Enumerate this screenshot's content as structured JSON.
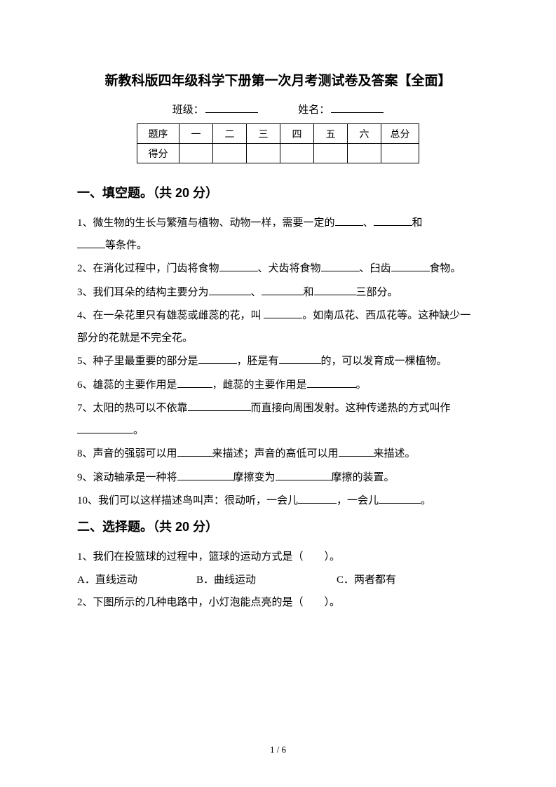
{
  "title": "新教科版四年级科学下册第一次月考测试卷及答案【全面】",
  "info": {
    "class_label": "班级：",
    "name_label": "姓名："
  },
  "scoreTable": {
    "row1": [
      "题序",
      "一",
      "二",
      "三",
      "四",
      "五",
      "六",
      "总分"
    ],
    "row2Label": "得分"
  },
  "section1": {
    "header": "一、填空题。（共 20 分）",
    "q1a": "1、微生物的生长与繁殖与植物、动物一样，需要一定的",
    "q1b": "、",
    "q1c": "和",
    "q1d": "等条件。",
    "q2a": "2、在消化过程中，门齿将食物",
    "q2b": "、犬齿将食物",
    "q2c": "、臼齿",
    "q2d": "食物。",
    "q3a": "3、我们耳朵的结构主要分为",
    "q3b": "、",
    "q3c": "和",
    "q3d": "三部分。",
    "q4a": "4、在一朵花里只有雄蕊或雌蕊的花，叫 ",
    "q4b": "。如南瓜花、西瓜花等。这种缺少一部分的花就是不完全花。",
    "q5a": "5、种子里最重要的部分是",
    "q5b": "，胚是有",
    "q5c": "的，可以发育成一棵植物。",
    "q6a": "6、雄蕊的主要作用是",
    "q6b": "，雌蕊的主要作用是",
    "q6c": "。",
    "q7a": "7、太阳的热可以不依靠",
    "q7b": "而直接向周围发射。这种传递热的方式叫作",
    "q7c": "。",
    "q8a": "8、声音的强弱可以用",
    "q8b": "来描述；声音的高低可以用",
    "q8c": "来描述。",
    "q9a": "9、滚动轴承是一种将",
    "q9b": "摩擦变为",
    "q9c": "摩擦的装置。",
    "q10a": "10、我们可以这样描述鸟叫声：很动听，一会儿",
    "q10b": "，一会儿",
    "q10c": "。"
  },
  "section2": {
    "header": "二、选择题。（共 20 分）",
    "q1": "1、我们在投篮球的过程中，篮球的运动方式是（　　）。",
    "q1a": "A．直线运动",
    "q1b": "B．曲线运动",
    "q1c": "C．两者都有",
    "q2": "2、下图所示的几种电路中，小灯泡能点亮的是（　　）。"
  },
  "pageNum": "1 / 6"
}
